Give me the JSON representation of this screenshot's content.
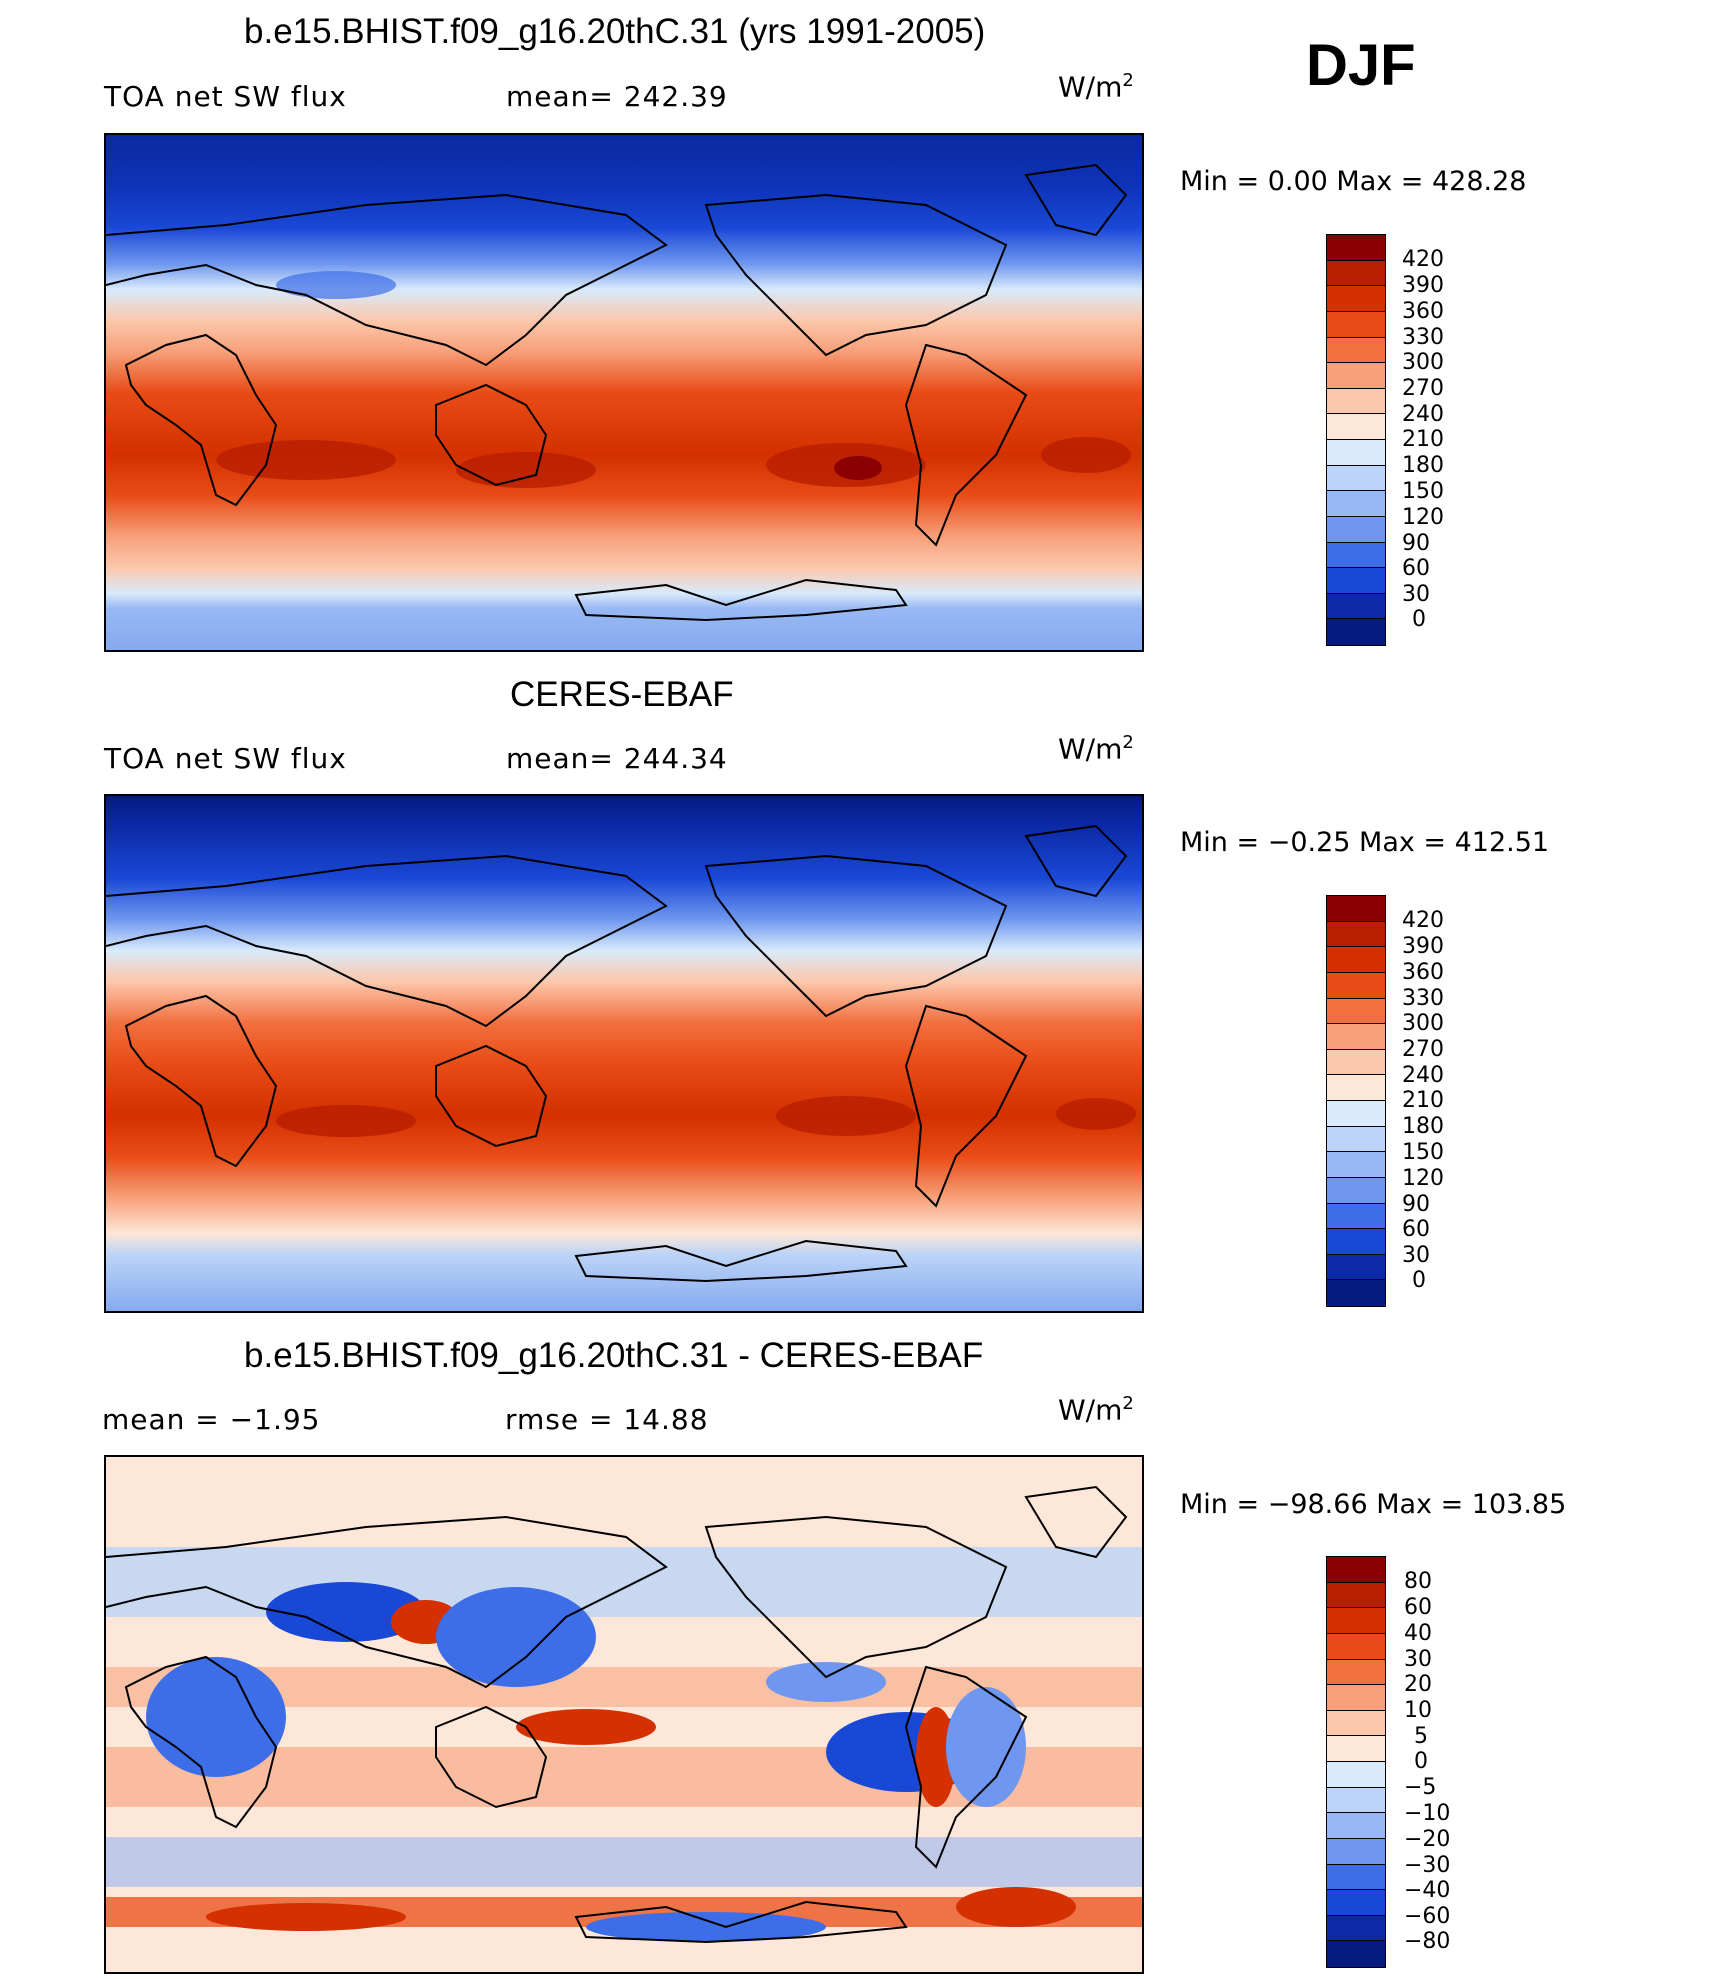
{
  "season": "DJF",
  "chart_data": [
    {
      "type": "heatmap",
      "title": "b.e15.BHIST.f09_g16.20thC.31 (yrs 1991-2005)",
      "left_label": "TOA net SW flux",
      "center_label": "mean= 242.39",
      "units_base": "W/m",
      "units_exp": "2",
      "minmax": "Min =    0.00 Max = 428.28",
      "mean": 242.39,
      "min": 0.0,
      "max": 428.28,
      "legend_levels": [
        "420",
        "390",
        "360",
        "330",
        "300",
        "270",
        "240",
        "210",
        "180",
        "150",
        "120",
        "90",
        "60",
        "30",
        "0"
      ],
      "legend_colors": [
        "#8b0000",
        "#b81e00",
        "#d43000",
        "#e84c16",
        "#f27040",
        "#f7a07a",
        "#fcc8ac",
        "#fde7d8",
        "#d8eafb",
        "#bcd4f7",
        "#98b8f4",
        "#6f97ef",
        "#3d6ee8",
        "#1a48d6",
        "#0c2aa8",
        "#061a80"
      ]
    },
    {
      "type": "heatmap",
      "title": "CERES-EBAF",
      "left_label": "TOA net SW flux",
      "center_label": "mean= 244.34",
      "units_base": "W/m",
      "units_exp": "2",
      "minmax": "Min =  −0.25 Max = 412.51",
      "mean": 244.34,
      "min": -0.25,
      "max": 412.51,
      "legend_levels": [
        "420",
        "390",
        "360",
        "330",
        "300",
        "270",
        "240",
        "210",
        "180",
        "150",
        "120",
        "90",
        "60",
        "30",
        "0"
      ],
      "legend_colors": [
        "#8b0000",
        "#b81e00",
        "#d43000",
        "#e84c16",
        "#f27040",
        "#f7a07a",
        "#fcc8ac",
        "#fde7d8",
        "#d8eafb",
        "#bcd4f7",
        "#98b8f4",
        "#6f97ef",
        "#3d6ee8",
        "#1a48d6",
        "#0c2aa8",
        "#061a80"
      ]
    },
    {
      "type": "heatmap",
      "title": "b.e15.BHIST.f09_g16.20thC.31 - CERES-EBAF",
      "left_label": "mean =   −1.95",
      "center_label": "rmse =   14.88",
      "units_base": "W/m",
      "units_exp": "2",
      "minmax": "Min = −98.66 Max = 103.85",
      "mean": -1.95,
      "rmse": 14.88,
      "min": -98.66,
      "max": 103.85,
      "legend_levels": [
        "80",
        "60",
        "40",
        "30",
        "20",
        "10",
        "5",
        "0",
        "−5",
        "−10",
        "−20",
        "−30",
        "−40",
        "−60",
        "−80"
      ],
      "legend_colors": [
        "#8b0000",
        "#b81e00",
        "#d43000",
        "#e84c16",
        "#f27040",
        "#f7a07a",
        "#fcc8ac",
        "#fde7d8",
        "#d8eafb",
        "#bcd4f7",
        "#98b8f4",
        "#6f97ef",
        "#3d6ee8",
        "#1a48d6",
        "#0c2aa8",
        "#061a80"
      ]
    }
  ]
}
